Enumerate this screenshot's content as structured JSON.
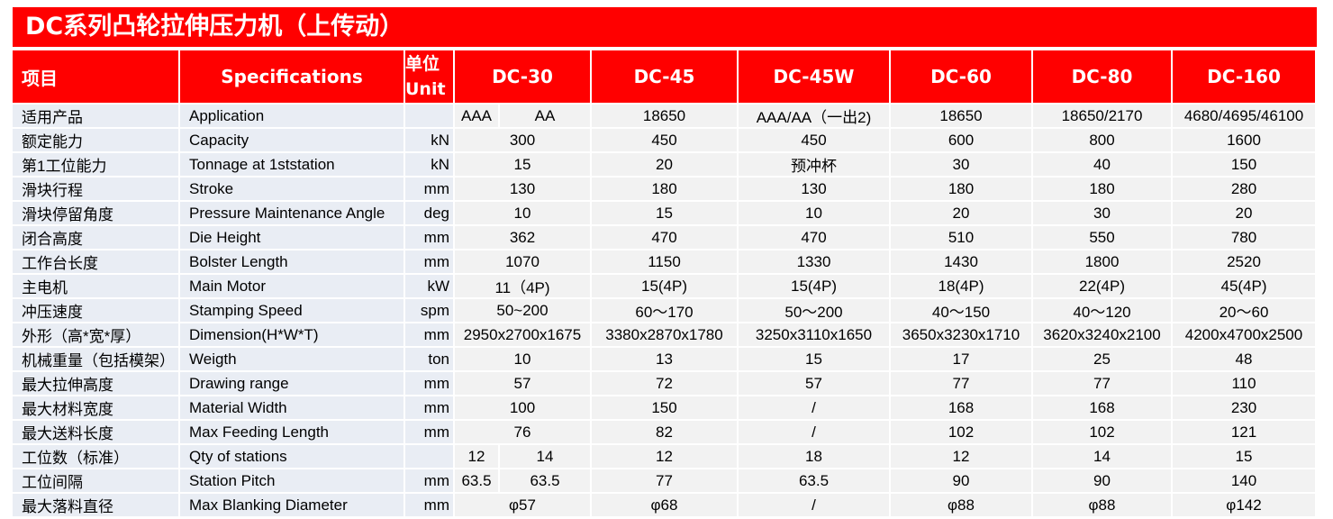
{
  "title": "DC系列凸轮拉伸压力机（上传动）",
  "header": {
    "item": "项目",
    "spec": "Specifications",
    "unit_cn": "单位",
    "unit_en": "Unit",
    "models": [
      "DC-30",
      "DC-45",
      "DC-45W",
      "DC-60",
      "DC-80",
      "DC-160"
    ]
  },
  "colors": {
    "header": "#ff0000",
    "label_bg": "#e9edf4",
    "value_bg": "#f2f2f2"
  },
  "rows": [
    {
      "cn": "适用产品",
      "en": "Application",
      "unit": "",
      "dc30": [
        "AAA",
        "AA"
      ],
      "values": [
        "18650",
        "AAA/AA（一出2)",
        "18650",
        "18650/2170",
        "4680/4695/46100"
      ]
    },
    {
      "cn": "额定能力",
      "en": "Capacity",
      "unit": "kN",
      "dc30": "300",
      "values": [
        "450",
        "450",
        "600",
        "800",
        "1600"
      ]
    },
    {
      "cn": "第1工位能力",
      "en": "Tonnage at 1ststation",
      "unit": "kN",
      "dc30": "15",
      "values": [
        "20",
        "预冲杯",
        "30",
        "40",
        "150"
      ]
    },
    {
      "cn": "滑块行程",
      "en": "Stroke",
      "unit": "mm",
      "dc30": "130",
      "values": [
        "180",
        "130",
        "180",
        "180",
        "280"
      ]
    },
    {
      "cn": "滑块停留角度",
      "en": "Pressure Maintenance Angle",
      "unit": "deg",
      "dc30": "10",
      "values": [
        "15",
        "10",
        "20",
        "30",
        "20"
      ]
    },
    {
      "cn": "闭合高度",
      "en": "Die Height",
      "unit": "mm",
      "dc30": "362",
      "values": [
        "470",
        "470",
        "510",
        "550",
        "780"
      ]
    },
    {
      "cn": "工作台长度",
      "en": "Bolster Length",
      "unit": "mm",
      "dc30": "1070",
      "values": [
        "1150",
        "1330",
        "1430",
        "1800",
        "2520"
      ]
    },
    {
      "cn": "主电机",
      "en": "Main Motor",
      "unit": "kW",
      "dc30": "11（4P)",
      "values": [
        "15(4P)",
        "15(4P)",
        "18(4P)",
        "22(4P)",
        "45(4P)"
      ]
    },
    {
      "cn": "冲压速度",
      "en": "Stamping Speed",
      "unit": "spm",
      "dc30": "50~200",
      "values": [
        "60～170",
        "50～200",
        "40～150",
        "40～120",
        "20～60"
      ]
    },
    {
      "cn": "外形（高*宽*厚）",
      "en": "Dimension(H*W*T)",
      "unit": "mm",
      "dc30": "2950x2700x1675",
      "values": [
        "3380x2870x1780",
        "3250x3110x1650",
        "3650x3230x1710",
        "3620x3240x2100",
        "4200x4700x2500"
      ]
    },
    {
      "cn": "机械重量（包括模架）",
      "en": "Weigth",
      "unit": "ton",
      "dc30": "10",
      "values": [
        "13",
        "15",
        "17",
        "25",
        "48"
      ]
    },
    {
      "cn": "最大拉伸高度",
      "en": "Drawing range",
      "unit": "mm",
      "dc30": "57",
      "values": [
        "72",
        "57",
        "77",
        "77",
        "110"
      ]
    },
    {
      "cn": "最大材料宽度",
      "en": "Material Width",
      "unit": "mm",
      "dc30": "100",
      "values": [
        "150",
        "/",
        "168",
        "168",
        "230"
      ]
    },
    {
      "cn": "最大送料长度",
      "en": "Max Feeding Length",
      "unit": "mm",
      "dc30": "76",
      "values": [
        "82",
        "/",
        "102",
        "102",
        "121"
      ]
    },
    {
      "cn": "工位数（标准）",
      "en": "Qty of stations",
      "unit": "",
      "dc30": [
        "12",
        "14"
      ],
      "values": [
        "12",
        "18",
        "12",
        "14",
        "15"
      ]
    },
    {
      "cn": "工位间隔",
      "en": "Station Pitch",
      "unit": "mm",
      "dc30": [
        "63.5",
        "63.5"
      ],
      "values": [
        "77",
        "63.5",
        "90",
        "90",
        "140"
      ]
    },
    {
      "cn": "最大落料直径",
      "en": "Max Blanking Diameter",
      "unit": "mm",
      "dc30": "φ57",
      "values": [
        "φ68",
        "/",
        "φ88",
        "φ88",
        "φ142"
      ]
    }
  ]
}
